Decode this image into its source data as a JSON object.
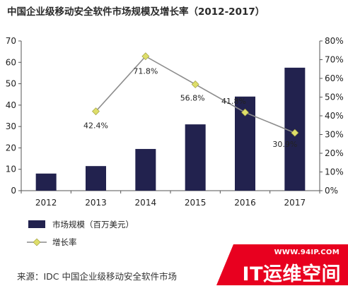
{
  "title": "中国企业级移动安全软件市场规模及增长率（2012-2017）",
  "chart_data": {
    "type": "bar",
    "categories": [
      "2012",
      "2013",
      "2014",
      "2015",
      "2016",
      "2017"
    ],
    "series": [
      {
        "name": "市场规模（百万美元）",
        "type": "bar",
        "axis": "left",
        "values": [
          8,
          11.5,
          19.5,
          31,
          44,
          57.5
        ],
        "color": "#22224e"
      },
      {
        "name": "增长率",
        "type": "line",
        "axis": "right",
        "values": [
          null,
          42.4,
          71.8,
          56.8,
          41.8,
          30.9
        ],
        "labels": [
          "",
          "42.4%",
          "71.8%",
          "56.8%",
          "41.8%",
          "30.9%"
        ],
        "color": "#8c8c8c",
        "marker_color": "#dede6a"
      }
    ],
    "left_axis": {
      "ylim": [
        0,
        70
      ],
      "ticks": [
        "0",
        "10",
        "20",
        "30",
        "40",
        "50",
        "60",
        "70"
      ]
    },
    "right_axis": {
      "ylim": [
        0,
        80
      ],
      "ticks": [
        "0%",
        "10%",
        "20%",
        "30%",
        "40%",
        "50%",
        "60%",
        "70%",
        "80%"
      ]
    },
    "grid": false,
    "legend_position": "bottom-left"
  },
  "source": "来源：IDC 中国企业级移动安全软件市场",
  "watermark": {
    "url": "WWW.94IP.COM",
    "text": "IT运维空间",
    "color": "#e8001f"
  }
}
